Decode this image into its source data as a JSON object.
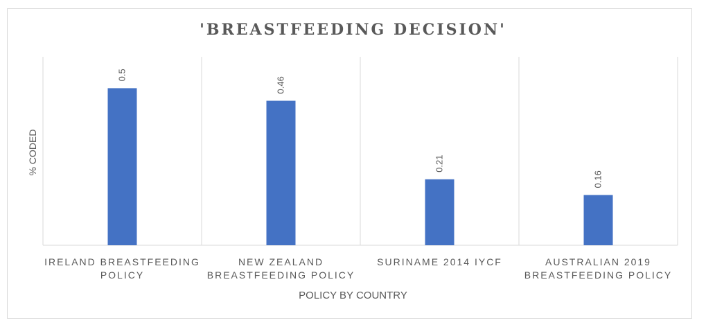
{
  "chart_data": {
    "type": "bar",
    "title": "'BREASTFEEDING DECISION'",
    "xlabel": "POLICY BY COUNTRY",
    "ylabel": "% CODED",
    "categories": [
      [
        "IRELAND BREASTFEEDING",
        "POLICY"
      ],
      [
        "NEW ZEALAND",
        "BREASTFEEDING  POLICY"
      ],
      [
        "SURINAME 2014 IYCF"
      ],
      [
        "AUSTRALIAN 2019",
        "BREASTFEEDING  POLICY"
      ]
    ],
    "values": [
      0.5,
      0.46,
      0.21,
      0.16
    ],
    "data_labels": [
      "0.5",
      "0.46",
      "0.21",
      "0.16"
    ],
    "ylim": [
      0,
      0.6
    ],
    "grid": false,
    "colors": {
      "bar": "#4472c4",
      "divider": "#d9d9d9",
      "axis": "#d9d9d9",
      "text": "#595959"
    }
  }
}
